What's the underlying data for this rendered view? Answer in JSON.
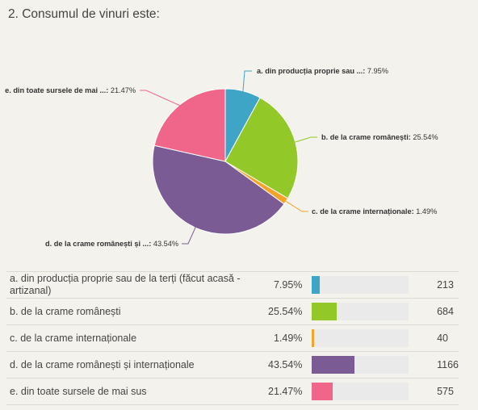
{
  "question": {
    "title": "2. Consumul de vinuri este:"
  },
  "chart_data": {
    "type": "pie",
    "title": "2. Consumul de vinuri este:",
    "slices": [
      {
        "key": "a",
        "label": "a. din producția proprie sau ...",
        "pct_text": "7.95%",
        "value": 7.95,
        "color": "#3ea5c6"
      },
      {
        "key": "b",
        "label": "b. de la crame românești",
        "pct_text": "25.54%",
        "value": 25.54,
        "color": "#92c928"
      },
      {
        "key": "c",
        "label": "c. de la crame internaționale",
        "pct_text": "1.49%",
        "value": 1.49,
        "color": "#f4a42a"
      },
      {
        "key": "d",
        "label": "d. de la crame românești și ...",
        "pct_text": "43.54%",
        "value": 43.54,
        "color": "#7a5b94"
      },
      {
        "key": "e",
        "label": "e. din toate sursele de mai ...",
        "pct_text": "21.47%",
        "value": 21.47,
        "color": "#f0658a"
      }
    ]
  },
  "table": {
    "rows": [
      {
        "label": "a. din producția proprie sau de la terți (făcut acasă - artizanal)",
        "pct": "7.95%",
        "fraction": 0.0795,
        "count": "213",
        "color": "#3ea5c6"
      },
      {
        "label": "b. de la crame românești",
        "pct": "25.54%",
        "fraction": 0.2554,
        "count": "684",
        "color": "#92c928"
      },
      {
        "label": "c. de la crame internaționale",
        "pct": "1.49%",
        "fraction": 0.0149,
        "count": "40",
        "color": "#f4a42a"
      },
      {
        "label": "d. de la crame românești și internaționale",
        "pct": "43.54%",
        "fraction": 0.4354,
        "count": "1166",
        "color": "#7a5b94"
      },
      {
        "label": "e. din toate sursele de mai sus",
        "pct": "21.47%",
        "fraction": 0.2147,
        "count": "575",
        "color": "#f0658a"
      }
    ]
  }
}
